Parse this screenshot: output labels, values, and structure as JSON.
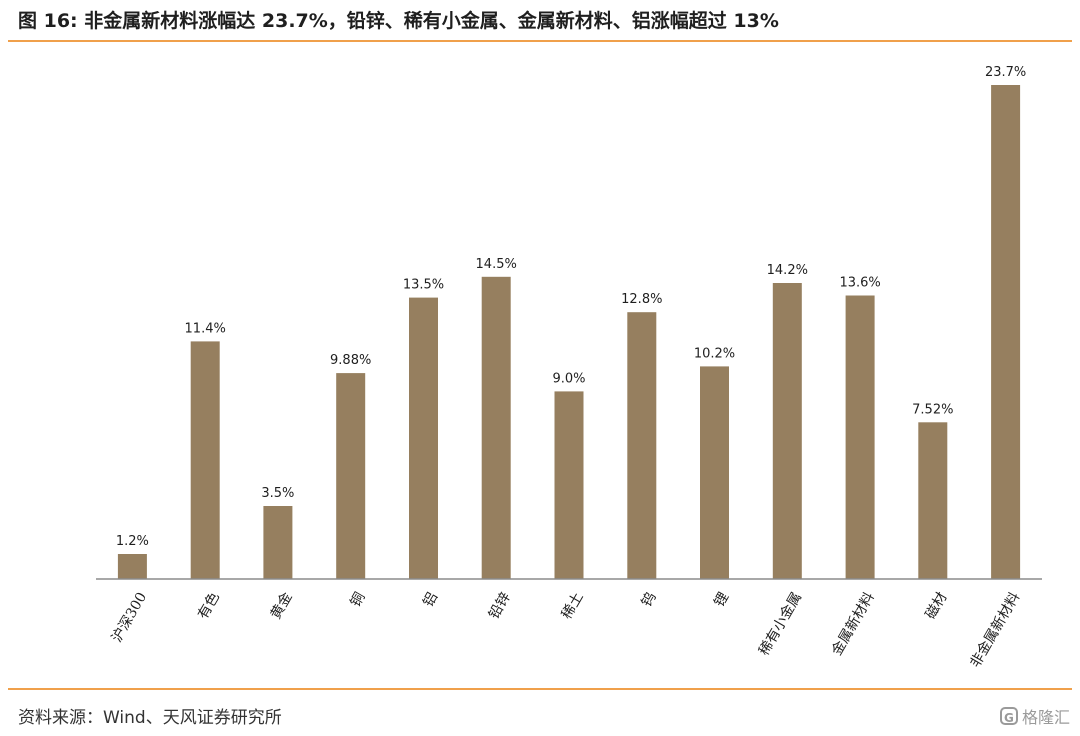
{
  "header": {
    "title": "图 16: 非金属新材料涨幅达 23.7%，铅锌、稀有小金属、金属新材料、铝涨幅超过 13%"
  },
  "colors": {
    "accent_rule": "#F0A04B",
    "bar": "#967F5F",
    "axis": "#8C8C8C",
    "text": "#1F1F1F"
  },
  "chart_data": {
    "type": "bar",
    "categories": [
      "沪深300",
      "有色",
      "黄金",
      "铜",
      "铝",
      "铅锌",
      "稀土",
      "钨",
      "锂",
      "稀有小金属",
      "金属新材料",
      "磁材",
      "非金属新材料"
    ],
    "values": [
      1.2,
      11.4,
      3.5,
      9.88,
      13.5,
      14.5,
      9.0,
      12.8,
      10.2,
      14.2,
      13.6,
      7.52,
      23.7
    ],
    "data_labels": [
      "1.2%",
      "11.4%",
      "3.5%",
      "9.88%",
      "13.5%",
      "14.5%",
      "9.0%",
      "12.8%",
      "10.2%",
      "14.2%",
      "13.6%",
      "7.52%",
      "23.7%"
    ],
    "ylim": [
      0,
      23.7
    ],
    "grid": false,
    "legend": "none"
  },
  "footer": {
    "source": "资料来源：Wind、天风证券研究所",
    "watermark_text": "格隆汇",
    "watermark_icon": "G"
  }
}
